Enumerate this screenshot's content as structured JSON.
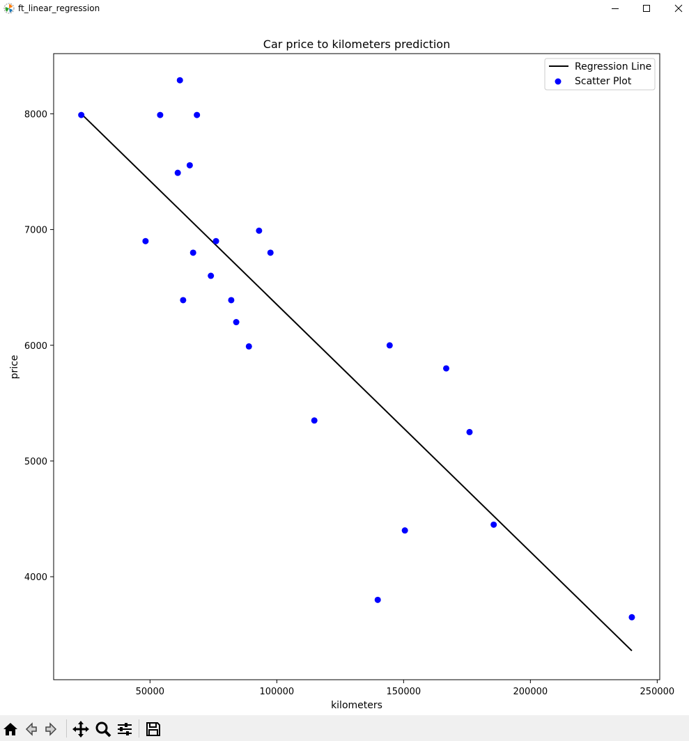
{
  "window": {
    "title": "ft_linear_regression",
    "icon": "matplotlib-icon",
    "controls": [
      "minimize-icon",
      "maximize-icon",
      "close-icon"
    ]
  },
  "toolbar": {
    "tools": [
      "home-icon",
      "back-arrow-icon",
      "forward-arrow-icon",
      "pan-icon",
      "zoom-icon",
      "configure-subplots-icon",
      "save-icon"
    ]
  },
  "chart_data": {
    "type": "scatter",
    "title": "Car price to kilometers prediction",
    "xlabel": "kilometers",
    "ylabel": "price",
    "xlim": [
      12000,
      251000
    ],
    "ylim": [
      3110,
      8520
    ],
    "xticks": [
      50000,
      100000,
      150000,
      200000,
      250000
    ],
    "xtick_labels": [
      "50000",
      "100000",
      "150000",
      "200000",
      "250000"
    ],
    "yticks": [
      4000,
      5000,
      6000,
      7000,
      8000
    ],
    "ytick_labels": [
      "4000",
      "5000",
      "6000",
      "7000",
      "8000"
    ],
    "grid": false,
    "legend_position": "top-right",
    "series": [
      {
        "name": "Regression Line",
        "kind": "line",
        "color": "#000000",
        "x": [
          22899,
          240000
        ],
        "y": [
          8000,
          3360
        ]
      },
      {
        "name": "Scatter Plot",
        "kind": "scatter",
        "color": "#0000ff",
        "x": [
          240000,
          139800,
          150500,
          185530,
          176000,
          114800,
          166800,
          89000,
          144500,
          84000,
          82029,
          63060,
          74000,
          97500,
          67000,
          76025,
          48235,
          93000,
          60949,
          65674,
          54000,
          68500,
          22899,
          61789
        ],
        "y": [
          3650,
          3800,
          4400,
          4450,
          5250,
          5350,
          5800,
          5990,
          5999,
          6200,
          6390,
          6390,
          6600,
          6800,
          6800,
          6900,
          6900,
          6990,
          7490,
          7555,
          7990,
          7990,
          7990,
          8290
        ]
      }
    ]
  }
}
